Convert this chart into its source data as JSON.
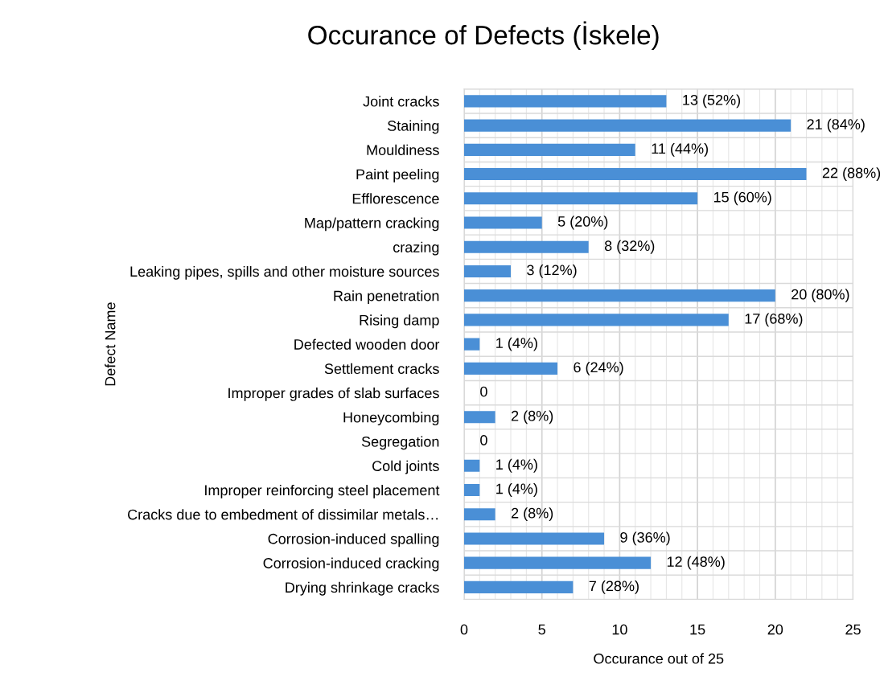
{
  "chart_data": {
    "type": "bar",
    "orientation": "horizontal",
    "title": "Occurance of Defects (İskele)",
    "xlabel": "Occurance out of 25",
    "ylabel": "Defect Name",
    "categories": [
      "Joint cracks",
      "Staining",
      "Mouldiness",
      "Paint peeling",
      "Efflorescence",
      "Map/pattern cracking",
      "crazing",
      "Leaking pipes, spills and other moisture sources",
      "Rain penetration",
      "Rising damp",
      "Defected wooden door",
      "Settlement cracks",
      "Improper grades of slab surfaces",
      "Honeycombing",
      "Segregation",
      "Cold joints",
      "Improper reinforcing steel placement",
      "Cracks due to embedment of dissimilar metals…",
      "Corrosion-induced spalling",
      "Corrosion-induced cracking",
      "Drying shrinkage cracks"
    ],
    "values": [
      13,
      21,
      11,
      22,
      15,
      5,
      8,
      3,
      20,
      17,
      1,
      6,
      0,
      2,
      0,
      1,
      1,
      2,
      9,
      12,
      7
    ],
    "value_labels": [
      "13 (52%)",
      "21 (84%)",
      "11 (44%)",
      "22 (88%)",
      "15 (60%)",
      "5 (20%)",
      "8 (32%)",
      "3 (12%)",
      "20 (80%)",
      "17 (68%)",
      "1 (4%)",
      "6 (24%)",
      "0",
      "2 (8%)",
      "0",
      "1 (4%)",
      "1 (4%)",
      "2 (8%)",
      "9 (36%)",
      "12 (48%)",
      "7 (28%)"
    ],
    "color": "#4a8fd6",
    "xlim": [
      0,
      25
    ],
    "xticks": [
      0,
      5,
      10,
      15,
      20,
      25
    ],
    "grid": true,
    "legend": false
  }
}
